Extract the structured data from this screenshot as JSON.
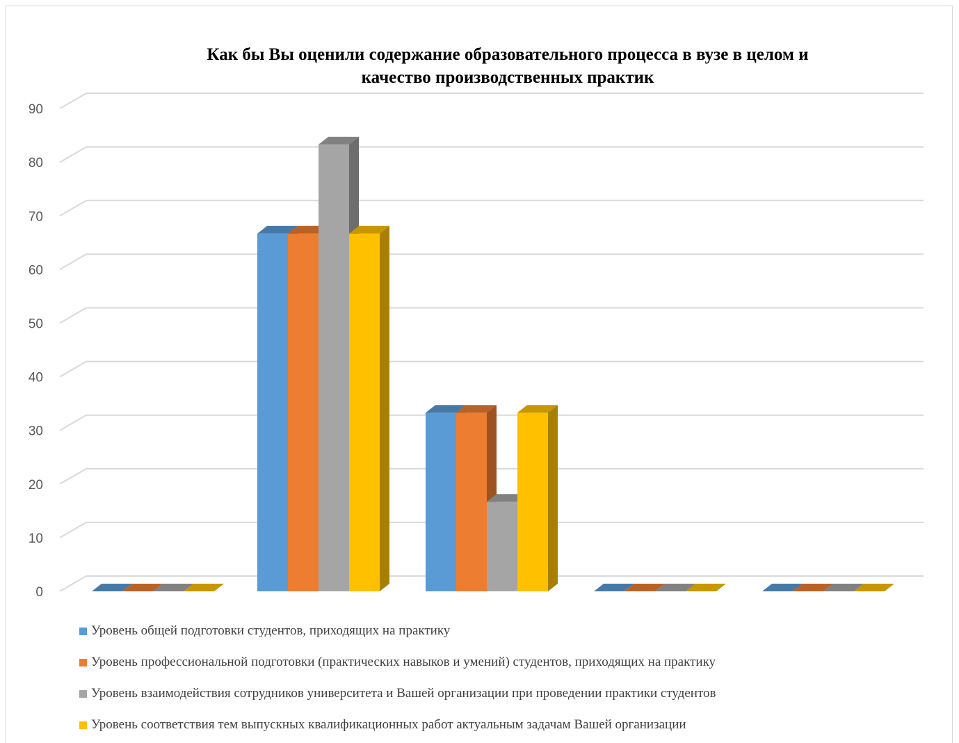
{
  "chart_data": {
    "type": "bar",
    "title": "Как бы Вы оценили содержание образовательного процесса в вузе в целом и\nкачество производственных практик",
    "xlabel": "",
    "ylabel": "",
    "ylim": [
      0,
      90
    ],
    "yticks": [
      "0",
      "10",
      "20",
      "30",
      "40",
      "50",
      "60",
      "70",
      "80",
      "90"
    ],
    "grid": true,
    "legend_position": "bottom",
    "categories": [
      "",
      "",
      "",
      "",
      ""
    ],
    "series": [
      {
        "name": "Уровень общей подготовки студентов, приходящих на практику",
        "color": "#5B9BD5",
        "values": [
          0,
          66.7,
          33.3,
          0,
          0
        ]
      },
      {
        "name": "Уровень профессиональной подготовки (практических навыков и умений) студентов, приходящих на практику",
        "color": "#ED7D31",
        "values": [
          0,
          66.7,
          33.3,
          0,
          0
        ]
      },
      {
        "name": "Уровень взаимодействия сотрудников университета и Вашей организации при проведении практики студентов",
        "color": "#A5A5A5",
        "values": [
          0,
          83.3,
          16.7,
          0,
          0
        ]
      },
      {
        "name": "Уровень соответствия тем выпускных квалификационных работ актуальным задачам Вашей организации",
        "color": "#FFC000",
        "values": [
          0,
          66.7,
          33.3,
          0,
          0
        ]
      }
    ]
  }
}
